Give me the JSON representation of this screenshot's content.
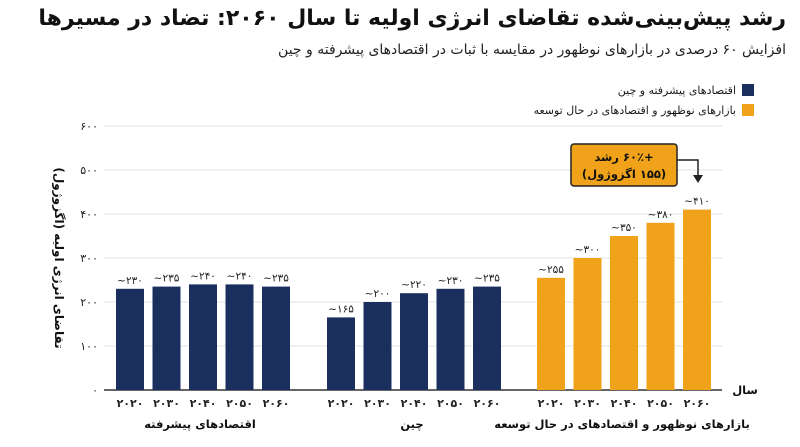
{
  "title": "رشد پیش‌بینی‌شده تقاضای انرژی اولیه تا سال ۲۰۶۰: تضاد در مسیرها",
  "subtitle": "افزایش ۶۰ درصدی در بازارهای نوظهور در مقایسه با ثبات در اقتصادهای پیشرفته و چین",
  "colors": {
    "advanced": "#1b2f5e",
    "emerging": "#f0a21a",
    "grid": "#e3e3e3",
    "axis": "#333333"
  },
  "legend": [
    {
      "label": "اقتصادهای پیشرفته و چین",
      "color": "#1b2f5e"
    },
    {
      "label": "بازارهای نوظهور و اقتصادهای در حال توسعه",
      "color": "#f0a21a"
    }
  ],
  "annotation": {
    "line1": "+۶۰٪ رشد",
    "line2": "(۱۵۵ اگزوژول)"
  },
  "chart_data": {
    "type": "bar",
    "ylabel": "تقاضای انرژی اولیه (اگزوژول)",
    "xlabel": "سال",
    "ylim": [
      0,
      600
    ],
    "yticks": [
      "۰",
      "۱۰۰",
      "۲۰۰",
      "۳۰۰",
      "۴۰۰",
      "۵۰۰",
      "۶۰۰"
    ],
    "grid": true,
    "legend_position": "top-right",
    "groups": [
      {
        "name": "اقتصادهای پیشرفته",
        "color_key": "advanced",
        "categories": [
          "۲۰۲۰",
          "۲۰۳۰",
          "۲۰۴۰",
          "۲۰۵۰",
          "۲۰۶۰"
        ],
        "values": [
          230,
          235,
          240,
          240,
          235
        ],
        "labels": [
          "~۲۳۰",
          "~۲۳۵",
          "~۲۴۰",
          "~۲۴۰",
          "~۲۳۵"
        ]
      },
      {
        "name": "چین",
        "color_key": "advanced",
        "categories": [
          "۲۰۲۰",
          "۲۰۳۰",
          "۲۰۴۰",
          "۲۰۵۰",
          "۲۰۶۰"
        ],
        "values": [
          165,
          200,
          220,
          230,
          235
        ],
        "labels": [
          "~۱۶۵",
          "~۲۰۰",
          "~۲۲۰",
          "~۲۳۰",
          "~۲۳۵"
        ]
      },
      {
        "name": "بازارهای نوظهور و اقتصادهای در حال توسعه",
        "color_key": "emerging",
        "categories": [
          "۲۰۲۰",
          "۲۰۳۰",
          "۲۰۴۰",
          "۲۰۵۰",
          "۲۰۶۰"
        ],
        "values": [
          255,
          300,
          350,
          380,
          410
        ],
        "labels": [
          "~۲۵۵",
          "~۳۰۰",
          "~۳۵۰",
          "~۳۸۰",
          "~۴۱۰"
        ]
      }
    ]
  }
}
